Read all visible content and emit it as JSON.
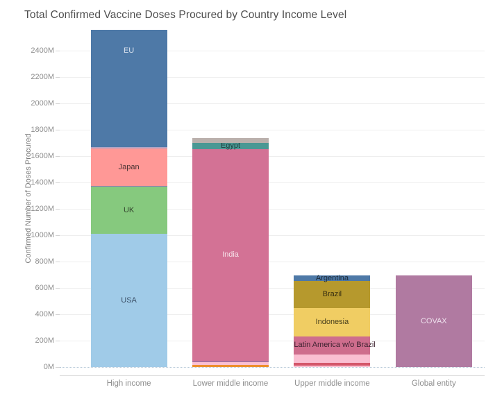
{
  "chart_data": {
    "type": "bar",
    "stacked": true,
    "title": "Total Confirmed Vaccine Doses Procured by Country Income Level",
    "ylabel": "Confirmed Number of Doses Procured",
    "xlabel": "",
    "unit": "millions of doses",
    "ylim": [
      0,
      2558
    ],
    "grid": true,
    "legend": "none (labels shown inside bar segments)",
    "categories": [
      "High income",
      "Lower middle income",
      "Upper middle income",
      "Global entity"
    ],
    "yticks": [
      {
        "value": 0,
        "label": "0M"
      },
      {
        "value": 200,
        "label": "200M"
      },
      {
        "value": 400,
        "label": "400M"
      },
      {
        "value": 600,
        "label": "600M"
      },
      {
        "value": 800,
        "label": "800M"
      },
      {
        "value": 1000,
        "label": "1000M"
      },
      {
        "value": 1200,
        "label": "1200M"
      },
      {
        "value": 1400,
        "label": "1400M"
      },
      {
        "value": 1600,
        "label": "1600M"
      },
      {
        "value": 1800,
        "label": "1800M"
      },
      {
        "value": 2000,
        "label": "2000M"
      },
      {
        "value": 2200,
        "label": "2200M"
      },
      {
        "value": 2400,
        "label": "2400M"
      }
    ],
    "segments_order": "bottom-to-top",
    "stacks": [
      {
        "category": "High income",
        "total": 2558,
        "segments": [
          {
            "label": "USA",
            "value": 1010,
            "color": "#a0cbe8",
            "label_color": "#3c5168"
          },
          {
            "label": "UK",
            "value": 358,
            "color": "#86c97e",
            "label_color": "#35462f"
          },
          {
            "label": "",
            "value": 5,
            "color": "#8e7cb0"
          },
          {
            "label": "Japan",
            "value": 285,
            "color": "#ff9896",
            "label_color": "#4c3434"
          },
          {
            "label": "",
            "value": 10,
            "color": "#b2a4c4"
          },
          {
            "label": "EU",
            "value": 890,
            "color": "#4e79a7",
            "label_color": "#d9e1ee",
            "label_frac": 0.18
          }
        ]
      },
      {
        "category": "Lower middle income",
        "total": 1737,
        "segments": [
          {
            "label": "",
            "value": 16,
            "color": "#ec8f2d"
          },
          {
            "label": "",
            "value": 25,
            "color": "#fabfd2"
          },
          {
            "label": "",
            "value": 8,
            "color": "#aa6f9e"
          },
          {
            "label": "India",
            "value": 1604,
            "color": "#d37295",
            "label_color": "#f6e3ea"
          },
          {
            "label": "Egypt",
            "value": 47,
            "color": "#4a9894",
            "label_color": "#1e3c3b"
          },
          {
            "label": "",
            "value": 37,
            "color": "#bab0ac"
          }
        ]
      },
      {
        "category": "Upper middle income",
        "total": 699,
        "segments": [
          {
            "label": "",
            "value": 14,
            "color": "#fabfd2"
          },
          {
            "label": "",
            "value": 18,
            "color": "#d4566a"
          },
          {
            "label": "",
            "value": 66,
            "color": "#fabfd2"
          },
          {
            "label": "Latin America w/o Brazil",
            "value": 136,
            "color": "#ce6d8d",
            "label_color": "#3d2230"
          },
          {
            "label": "Indonesia",
            "value": 218,
            "color": "#f0cd63",
            "label_color": "#49401c"
          },
          {
            "label": "Brazil",
            "value": 200,
            "color": "#b6992d",
            "label_color": "#393011"
          },
          {
            "label": "Argentina",
            "value": 47,
            "color": "#4e79a7",
            "label_color": "#1c2b3a"
          }
        ]
      },
      {
        "category": "Global entity",
        "total": 697,
        "segments": [
          {
            "label": "COVAX",
            "value": 697,
            "color": "#b07aa1",
            "label_color": "#eee0ed"
          }
        ]
      }
    ]
  }
}
